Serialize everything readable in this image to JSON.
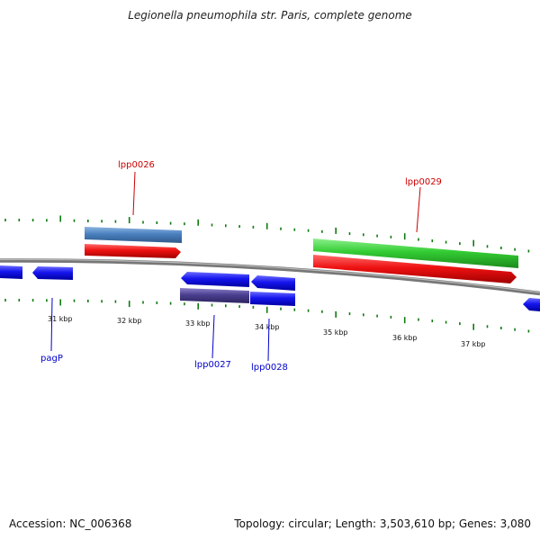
{
  "title": "Legionella pneumophila str. Paris, complete genome",
  "footer": {
    "accession": "Accession: NC_006368",
    "stats": "Topology: circular; Length: 3,503,610 bp; Genes: 3,080"
  },
  "colors": {
    "backbone": "#8a8a8a",
    "tick": "#0f7a0f",
    "plus_strand_label": "#cc0000",
    "minus_strand_label": "#0000cc",
    "cds_red": "#ee1111",
    "cds_blue": "#1515ee",
    "gene_green": "#33cc33",
    "gene_steelblue": "#4a80bf",
    "gene_slate": "#4a3f8f"
  },
  "scale_labels": [
    "31 kbp",
    "32 kbp",
    "33 kbp",
    "34 kbp",
    "35 kbp",
    "36 kbp",
    "37 kbp"
  ],
  "gene_labels": {
    "lpp0026": "lpp0026",
    "lpp0029": "lpp0029",
    "pagP": "pagP",
    "lpp0027": "lpp0027",
    "lpp0028": "lpp0028"
  }
}
